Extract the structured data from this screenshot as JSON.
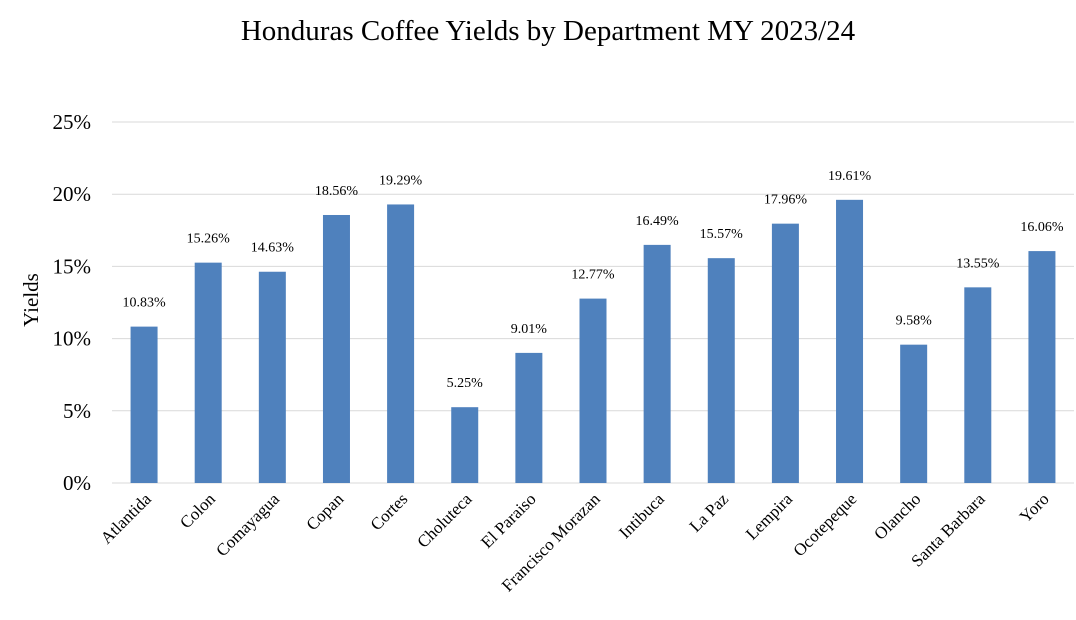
{
  "chart_data": {
    "type": "bar",
    "title": "Honduras Coffee Yields by Department MY 2023/24",
    "xlabel": "",
    "ylabel": "Yields",
    "categories": [
      "Atlantida",
      "Colon",
      "Comayagua",
      "Copan",
      "Cortes",
      "Choluteca",
      "El Paraiso",
      "Francisco Morazan",
      "Intibuca",
      "La Paz",
      "Lempira",
      "Ocotepeque",
      "Olancho",
      "Santa Barbara",
      "Yoro"
    ],
    "values": [
      10.83,
      15.26,
      14.63,
      18.56,
      19.29,
      5.25,
      9.01,
      12.77,
      16.49,
      15.57,
      17.96,
      19.61,
      9.58,
      13.55,
      16.06
    ],
    "data_labels": [
      "10.83%",
      "15.26%",
      "14.63%",
      "18.56%",
      "19.29%",
      "5.25%",
      "9.01%",
      "12.77%",
      "16.49%",
      "15.57%",
      "17.96%",
      "19.61%",
      "9.58%",
      "13.55%",
      "16.06%"
    ],
    "yticks": [
      0,
      5,
      10,
      15,
      20,
      25
    ],
    "ytick_labels": [
      "0%",
      "5%",
      "10%",
      "15%",
      "20%",
      "25%"
    ],
    "ylim": [
      0,
      25
    ],
    "grid": true,
    "legend": "none",
    "bar_color": "#4f81bd"
  }
}
